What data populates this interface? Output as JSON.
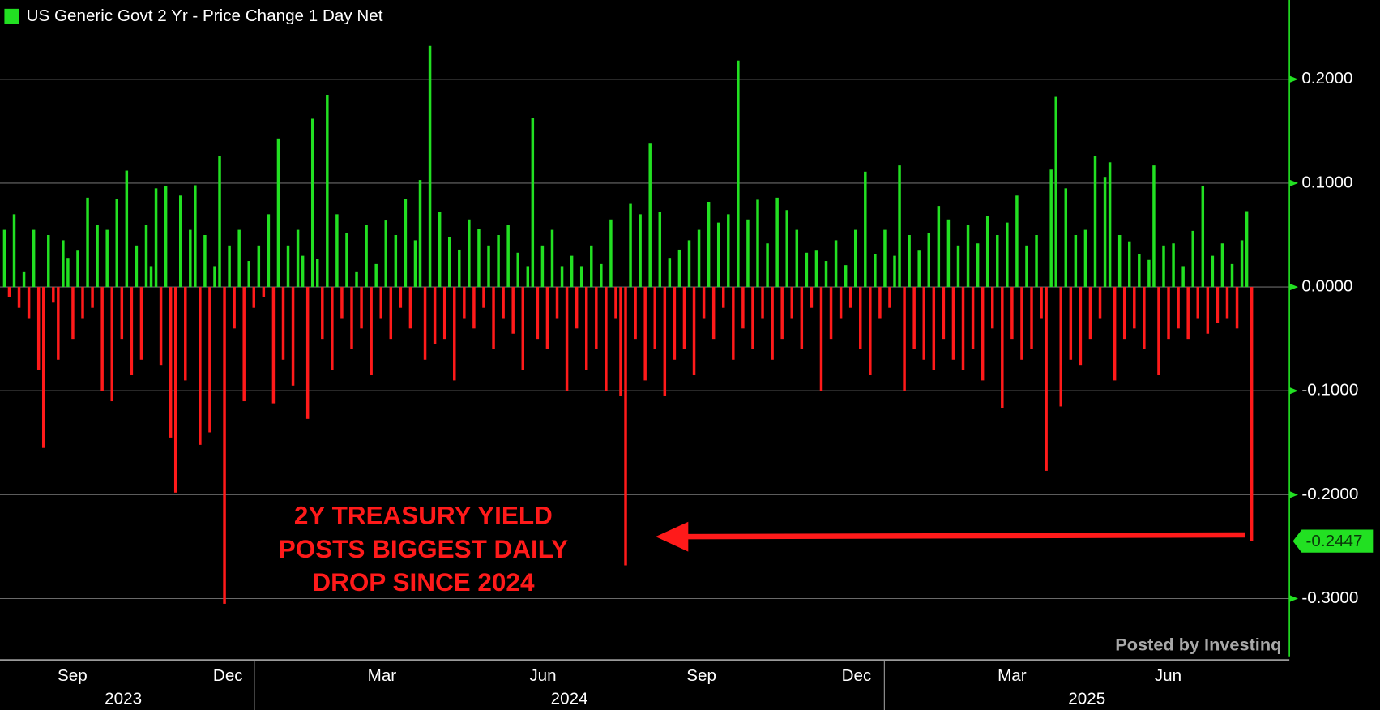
{
  "chart_data": {
    "type": "bar",
    "title": "US Generic Govt 2 Yr - Price Change 1 Day Net",
    "positive_color": "#22e022",
    "negative_color": "#ff1a1a",
    "values": [
      0.055,
      -0.01,
      0.07,
      -0.02,
      0.015,
      -0.03,
      0.055,
      -0.08,
      -0.155,
      0.05,
      -0.015,
      -0.07,
      0.045,
      0.028,
      -0.05,
      0.035,
      -0.03,
      0.086,
      -0.02,
      0.06,
      -0.1,
      0.055,
      -0.11,
      0.085,
      -0.05,
      0.112,
      -0.085,
      0.04,
      -0.07,
      0.06,
      0.02,
      0.095,
      -0.075,
      0.097,
      -0.145,
      -0.198,
      0.088,
      -0.09,
      0.055,
      0.098,
      -0.152,
      0.05,
      -0.14,
      0.02,
      0.126,
      -0.305,
      0.04,
      -0.04,
      0.055,
      -0.11,
      0.025,
      -0.02,
      0.04,
      -0.01,
      0.07,
      -0.112,
      0.143,
      -0.07,
      0.04,
      -0.095,
      0.055,
      0.03,
      -0.127,
      0.162,
      0.027,
      -0.05,
      0.185,
      -0.08,
      0.07,
      -0.03,
      0.052,
      -0.06,
      0.015,
      -0.04,
      0.06,
      -0.085,
      0.022,
      -0.03,
      0.064,
      -0.05,
      0.05,
      -0.02,
      0.085,
      -0.04,
      0.045,
      0.103,
      -0.07,
      0.232,
      -0.055,
      0.072,
      -0.05,
      0.048,
      -0.09,
      0.036,
      -0.03,
      0.065,
      -0.04,
      0.056,
      -0.02,
      0.04,
      -0.06,
      0.05,
      -0.03,
      0.06,
      -0.045,
      0.033,
      -0.08,
      0.02,
      0.163,
      -0.05,
      0.04,
      -0.06,
      0.055,
      -0.03,
      0.02,
      -0.1,
      0.03,
      -0.04,
      0.02,
      -0.08,
      0.04,
      -0.06,
      0.022,
      -0.1,
      0.065,
      -0.03,
      -0.105,
      -0.268,
      0.08,
      -0.05,
      0.07,
      -0.09,
      0.138,
      -0.06,
      0.072,
      -0.105,
      0.028,
      -0.07,
      0.036,
      -0.06,
      0.045,
      -0.085,
      0.055,
      -0.03,
      0.082,
      -0.05,
      0.062,
      -0.02,
      0.07,
      -0.07,
      0.218,
      -0.04,
      0.065,
      -0.06,
      0.084,
      -0.03,
      0.042,
      -0.07,
      0.086,
      -0.05,
      0.074,
      -0.03,
      0.055,
      -0.06,
      0.033,
      -0.02,
      0.035,
      -0.1,
      0.025,
      -0.05,
      0.045,
      -0.03,
      0.021,
      -0.02,
      0.055,
      -0.06,
      0.111,
      -0.085,
      0.032,
      -0.03,
      0.055,
      -0.02,
      0.03,
      0.117,
      -0.1,
      0.05,
      -0.06,
      0.035,
      -0.07,
      0.052,
      -0.08,
      0.078,
      -0.05,
      0.065,
      -0.07,
      0.04,
      -0.08,
      0.06,
      -0.06,
      0.042,
      -0.09,
      0.068,
      -0.04,
      0.05,
      -0.117,
      0.062,
      -0.05,
      0.088,
      -0.07,
      0.04,
      -0.06,
      0.05,
      -0.03,
      -0.177,
      0.113,
      0.183,
      -0.115,
      0.095,
      -0.07,
      0.05,
      -0.075,
      0.055,
      -0.05,
      0.126,
      -0.03,
      0.106,
      0.12,
      -0.09,
      0.05,
      -0.05,
      0.044,
      -0.04,
      0.032,
      -0.06,
      0.026,
      0.117,
      -0.085,
      0.04,
      -0.05,
      0.042,
      -0.04,
      0.02,
      -0.05,
      0.054,
      -0.03,
      0.097,
      -0.045,
      0.03,
      -0.035,
      0.042,
      -0.03,
      0.022,
      -0.04,
      0.045,
      0.073,
      -0.2447
    ],
    "last_value_label": "-0.2447",
    "xlim": [
      -0.9,
      262.7
    ],
    "xticks": [
      {
        "value": 13.9,
        "label": "Sep"
      },
      {
        "value": 45.7,
        "label": "Dec"
      },
      {
        "value": 77.2,
        "label": "Mar"
      },
      {
        "value": 110.1,
        "label": "Jun"
      },
      {
        "value": 142.5,
        "label": "Sep"
      },
      {
        "value": 174.2,
        "label": "Dec"
      },
      {
        "value": 206.0,
        "label": "Mar"
      },
      {
        "value": 237.9,
        "label": "Jun"
      }
    ],
    "year_ticks": [
      {
        "value": 24.3,
        "label": "2023"
      },
      {
        "value": 115.5,
        "label": "2024"
      },
      {
        "value": 221.3,
        "label": "2025"
      }
    ],
    "year_breaks": [
      51.1,
      179.9
    ],
    "ylim": [
      -0.359,
      0.2763
    ],
    "yticks": [
      {
        "value": 0.2,
        "label": "0.2000"
      },
      {
        "value": 0.1,
        "label": "0.1000"
      },
      {
        "value": 0,
        "label": "0.0000"
      },
      {
        "value": -0.1,
        "label": "-0.1000"
      },
      {
        "value": -0.2,
        "label": "-0.2000"
      },
      {
        "value": -0.3,
        "label": "-0.3000"
      }
    ],
    "grid": true,
    "annotation": [
      "2Y TREASURY YIELD",
      "POSTS BIGGEST DAILY",
      "DROP SINCE 2024"
    ],
    "credit": "Posted by Investinq"
  }
}
